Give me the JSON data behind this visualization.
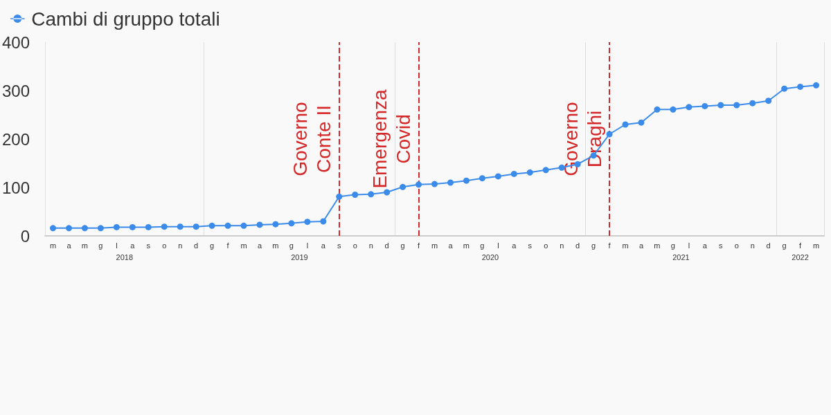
{
  "chart_data": {
    "type": "line",
    "categories": [
      "m",
      "a",
      "m",
      "g",
      "l",
      "a",
      "s",
      "o",
      "n",
      "d",
      "g",
      "f",
      "m",
      "a",
      "m",
      "g",
      "l",
      "a",
      "s",
      "o",
      "n",
      "d",
      "g",
      "f",
      "m",
      "a",
      "m",
      "g",
      "l",
      "a",
      "s",
      "o",
      "n",
      "d",
      "g",
      "f",
      "m",
      "a",
      "m",
      "g",
      "l",
      "a",
      "s",
      "o",
      "n",
      "d",
      "g",
      "f",
      "m"
    ],
    "series": [
      {
        "name": "Cambi di gruppo totali",
        "color": "#3b8beb",
        "values": [
          16,
          16,
          16,
          16,
          18,
          18,
          18,
          19,
          19,
          19,
          21,
          21,
          21,
          23,
          24,
          26,
          29,
          30,
          81,
          85,
          86,
          90,
          101,
          106,
          107,
          110,
          114,
          119,
          123,
          128,
          131,
          136,
          141,
          148,
          166,
          210,
          230,
          234,
          261,
          261,
          266,
          268,
          270,
          270,
          274,
          279,
          304,
          308,
          311
        ]
      }
    ],
    "ylim": [
      0,
      400
    ],
    "yticks": [
      0,
      100,
      200,
      300,
      400
    ],
    "grid": "x",
    "legend": "top left",
    "marker": "circle",
    "line_style": "solid",
    "annotations": [
      "Governo Conte II",
      "Emergenza Covid",
      "Governo Draghi",
      "2018",
      "2019",
      "2020",
      "2021",
      "2022"
    ]
  }
}
